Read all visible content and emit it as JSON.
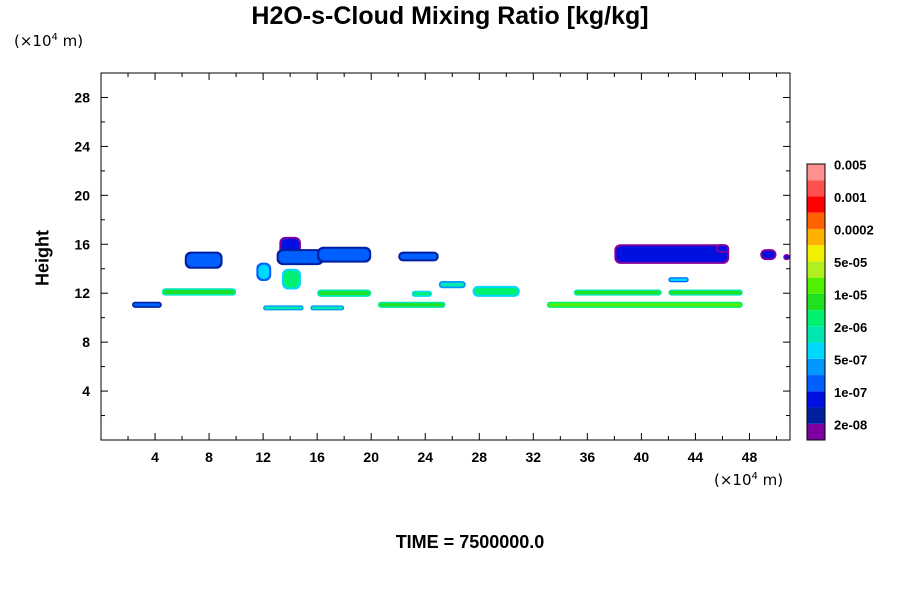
{
  "chart_data": {
    "type": "heatmap",
    "title": "H2O-s-Cloud Mixing Ratio [kg/kg]",
    "xlabel": "",
    "ylabel": "Height",
    "x_unit": {
      "prefix": "(×10",
      "exp": "4",
      "suffix": " m)"
    },
    "y_unit": {
      "prefix": "(×10",
      "exp": "4",
      "suffix": " m)"
    },
    "xlim": [
      0,
      51
    ],
    "ylim": [
      0,
      30
    ],
    "x_ticks": [
      "4",
      "8",
      "12",
      "16",
      "20",
      "24",
      "28",
      "32",
      "36",
      "40",
      "44",
      "48"
    ],
    "x_tick_values": [
      4,
      8,
      12,
      16,
      20,
      24,
      28,
      32,
      36,
      40,
      44,
      48
    ],
    "y_ticks": [
      "4",
      "8",
      "12",
      "16",
      "20",
      "24",
      "28"
    ],
    "y_tick_values": [
      4,
      8,
      12,
      16,
      20,
      24,
      28
    ],
    "colorbar": {
      "levels": [
        "2e-08",
        "1e-07",
        "5e-07",
        "2e-06",
        "1e-05",
        "5e-05",
        "0.0002",
        "0.001",
        "0.005"
      ],
      "colors": [
        "#7f00a0",
        "#00209f",
        "#0010e0",
        "#0060ff",
        "#0098ff",
        "#00d8ff",
        "#00e8b0",
        "#00f070",
        "#20e020",
        "#50f000",
        "#b0f020",
        "#f0f000",
        "#ffb000",
        "#ff6000",
        "#ff0000",
        "#ff5050",
        "#ff9090"
      ]
    },
    "regions": [
      {
        "x": [
          2.3,
          4.5
        ],
        "y": [
          10.8,
          11.3
        ],
        "level": 3
      },
      {
        "x": [
          4.5,
          10.0
        ],
        "y": [
          11.8,
          12.4
        ],
        "level": 8
      },
      {
        "x": [
          6.2,
          9.0
        ],
        "y": [
          14.0,
          15.4
        ],
        "level": 3
      },
      {
        "x": [
          11.5,
          12.6
        ],
        "y": [
          13.0,
          14.5
        ],
        "level": 5
      },
      {
        "x": [
          13.2,
          14.8
        ],
        "y": [
          15.0,
          16.6
        ],
        "level": 2
      },
      {
        "x": [
          13.0,
          16.5
        ],
        "y": [
          14.3,
          15.6
        ],
        "level": 3
      },
      {
        "x": [
          13.4,
          14.8
        ],
        "y": [
          12.3,
          14.0
        ],
        "level": 7
      },
      {
        "x": [
          16.0,
          20.0
        ],
        "y": [
          14.5,
          15.8
        ],
        "level": 3
      },
      {
        "x": [
          16.0,
          20.0
        ],
        "y": [
          11.7,
          12.3
        ],
        "level": 8
      },
      {
        "x": [
          12.0,
          15.0
        ],
        "y": [
          10.6,
          11.0
        ],
        "level": 6
      },
      {
        "x": [
          15.5,
          18.0
        ],
        "y": [
          10.6,
          11.0
        ],
        "level": 6
      },
      {
        "x": [
          22.0,
          25.0
        ],
        "y": [
          14.6,
          15.4
        ],
        "level": 3
      },
      {
        "x": [
          20.5,
          25.5
        ],
        "y": [
          10.8,
          11.3
        ],
        "level": 8
      },
      {
        "x": [
          23.0,
          24.5
        ],
        "y": [
          11.7,
          12.2
        ],
        "level": 7
      },
      {
        "x": [
          25.0,
          27.0
        ],
        "y": [
          12.4,
          13.0
        ],
        "level": 6
      },
      {
        "x": [
          27.5,
          31.0
        ],
        "y": [
          11.7,
          12.6
        ],
        "level": 7
      },
      {
        "x": [
          33.0,
          47.5
        ],
        "y": [
          10.8,
          11.3
        ],
        "level": 9
      },
      {
        "x": [
          35.0,
          41.5
        ],
        "y": [
          11.8,
          12.3
        ],
        "level": 8
      },
      {
        "x": [
          42.0,
          47.5
        ],
        "y": [
          11.8,
          12.3
        ],
        "level": 8
      },
      {
        "x": [
          42.0,
          43.5
        ],
        "y": [
          12.9,
          13.3
        ],
        "level": 5
      },
      {
        "x": [
          38.0,
          46.5
        ],
        "y": [
          14.4,
          16.0
        ],
        "level": 2
      },
      {
        "x": [
          45.5,
          46.5
        ],
        "y": [
          15.3,
          16.0
        ],
        "level": 2
      },
      {
        "x": [
          48.8,
          50.0
        ],
        "y": [
          14.7,
          15.6
        ],
        "level": 2
      },
      {
        "x": [
          50.5,
          51.0
        ],
        "y": [
          14.7,
          15.2
        ],
        "level": 2
      }
    ]
  },
  "footer": {
    "time_label": "TIME = 7500000.0"
  }
}
